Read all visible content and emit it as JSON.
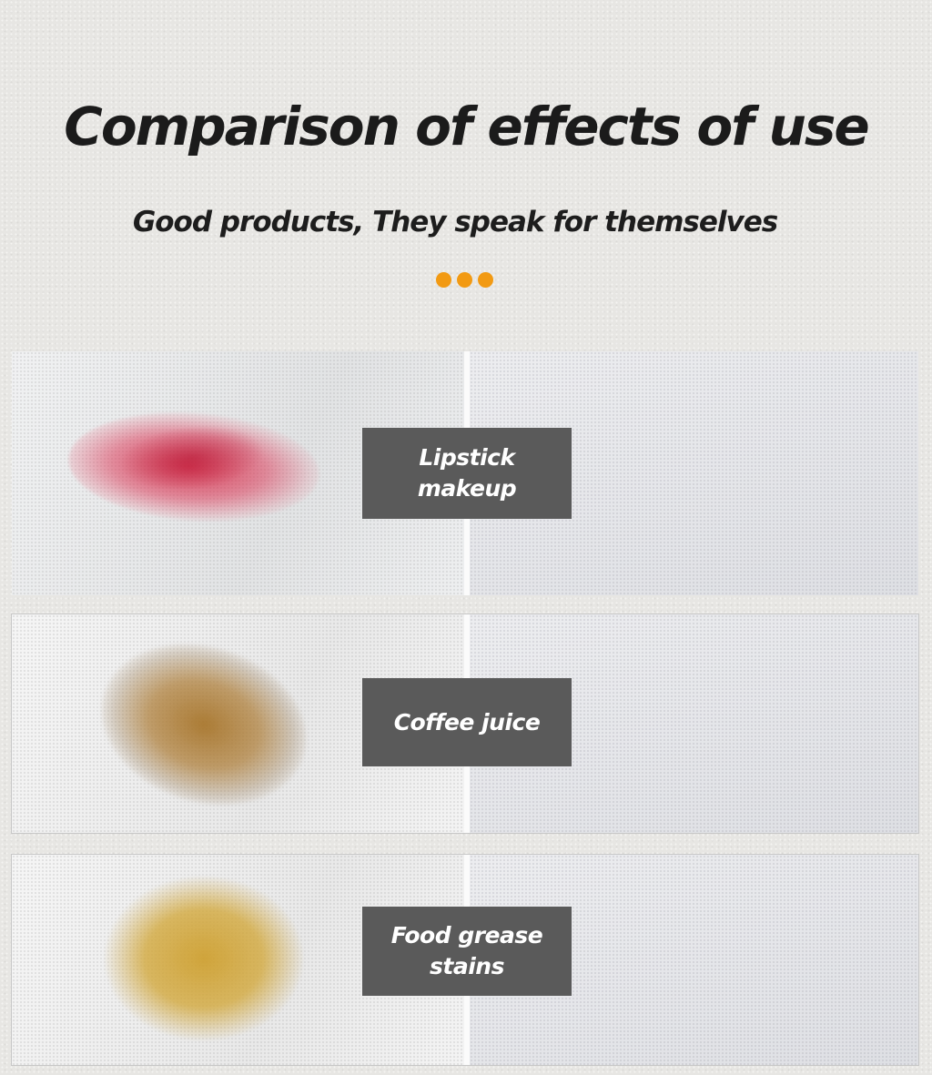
{
  "header": {
    "title": "Comparison of effects of use",
    "subtitle": "Good products, They speak for themselves"
  },
  "accent_color": "#f29a13",
  "label_background": "#5a5a5a",
  "comparisons": [
    {
      "label": "Lipstick makeup",
      "stain_color": "#d42240"
    },
    {
      "label": "Coffee juice",
      "stain_color": "#a8762c"
    },
    {
      "label": "Food grease stains",
      "stain_color": "#cea032"
    }
  ]
}
